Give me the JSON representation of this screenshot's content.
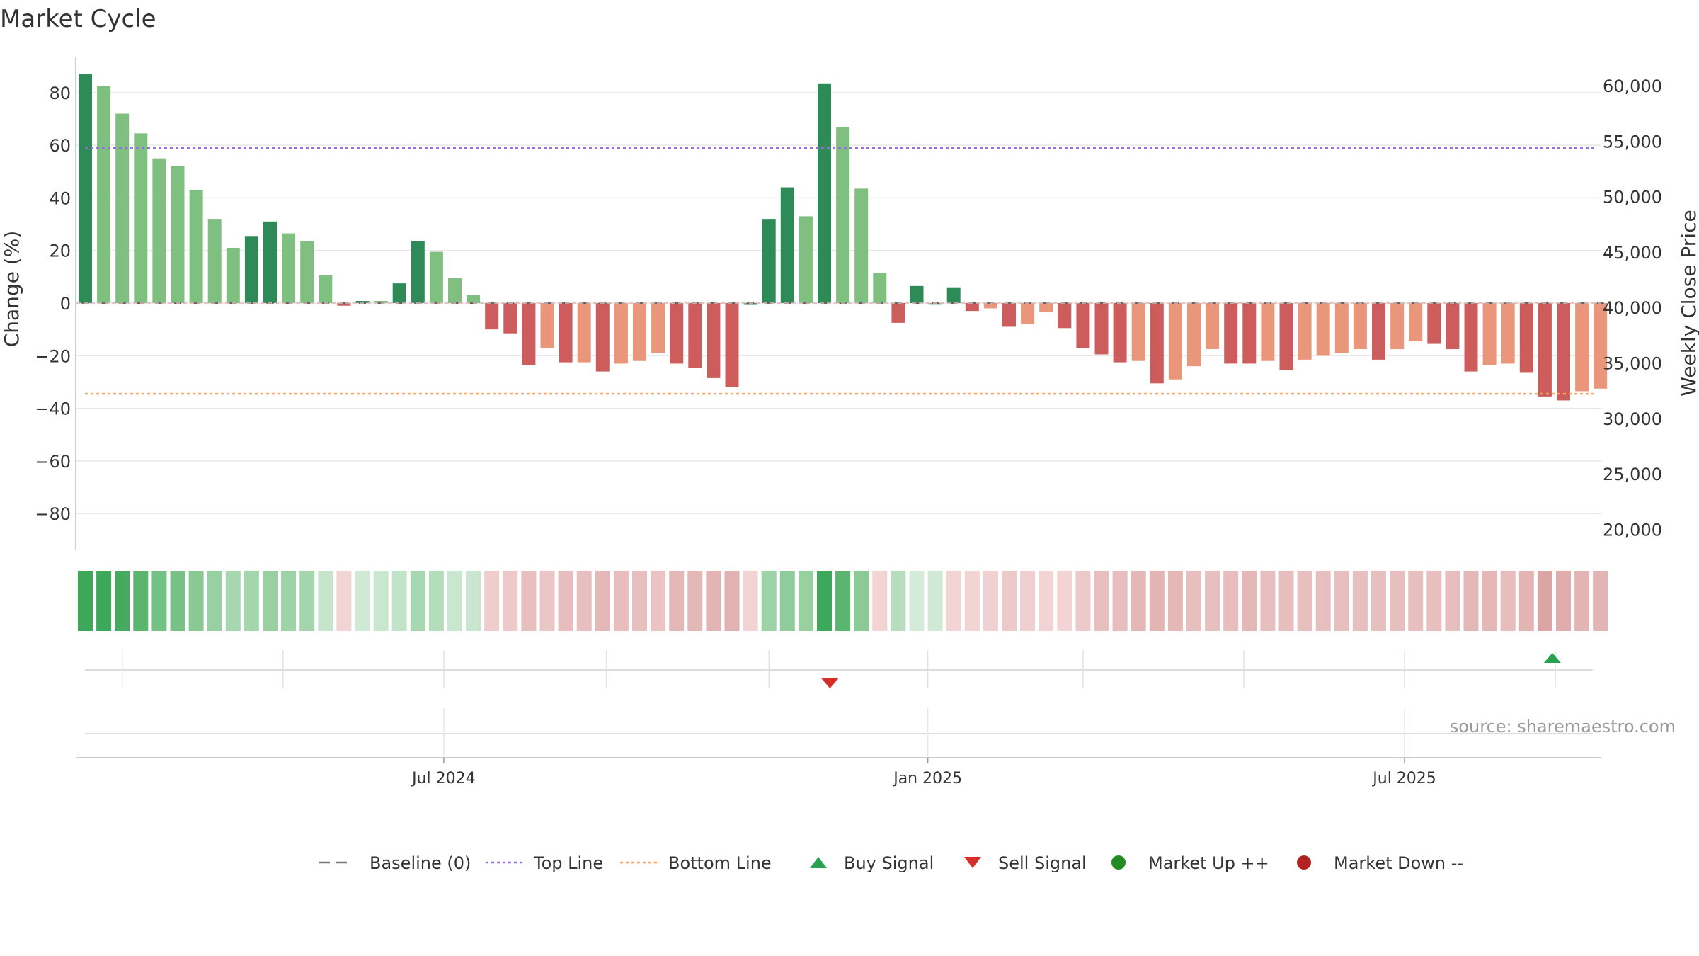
{
  "chart_data": {
    "type": "bar",
    "title": "Market Cycle",
    "ylabel": "Change (%)",
    "y2label": "Weekly Close Price",
    "ylim": [
      -95,
      95
    ],
    "y2lim": [
      18000,
      62000
    ],
    "yticks": [
      80,
      60,
      40,
      20,
      0,
      -20,
      -40,
      -60,
      -80
    ],
    "ytick_labels": [
      "80",
      "60",
      "40",
      "20",
      "0",
      "−20",
      "−40",
      "−60",
      "−80"
    ],
    "y2ticks": [
      60000,
      55000,
      50000,
      45000,
      40000,
      35000,
      30000,
      25000,
      20000
    ],
    "y2tick_labels": [
      "60,000",
      "55,000",
      "50,000",
      "45,000",
      "40,000",
      "35,000",
      "30,000",
      "25,000",
      "20,000"
    ],
    "x_ticks": [
      {
        "label": "Jul 2024",
        "index": 19.4
      },
      {
        "label": "Jan 2025",
        "index": 45.6
      },
      {
        "label": "Jul 2025",
        "index": 71.4
      }
    ],
    "minor_tick_indices": [
      2,
      10.7,
      28.2,
      37,
      54,
      62.7
    ],
    "grid": true,
    "legend_position": "bottom",
    "source": "source: sharemaestro.com",
    "values": [
      87,
      82.5,
      72,
      64.5,
      55,
      52,
      43,
      32,
      21,
      25.5,
      31,
      26.5,
      23.5,
      10.5,
      -1,
      0.8,
      0.8,
      7.5,
      23.5,
      19.5,
      9.5,
      3,
      -10,
      -11.5,
      -23.5,
      -17,
      -22.5,
      -22.5,
      -26,
      -23,
      -22,
      -19,
      -23,
      -24.5,
      -28.5,
      -32,
      0,
      32,
      44,
      33,
      83.5,
      67,
      43.5,
      11.5,
      -7.5,
      6.5,
      0,
      6,
      -3,
      -2,
      -9,
      -8,
      -3.5,
      -9.5,
      -17,
      -19.5,
      -22.5,
      -22,
      -30.5,
      -29,
      -24,
      -17.5,
      -23,
      -23,
      -22,
      -25.5,
      -21.5,
      -20,
      -19,
      -17.5,
      -21.5,
      -17.5,
      -14.5,
      -15.5,
      -17.5,
      -26,
      -23.5,
      -23,
      -26.5,
      -35.5,
      -37,
      -33.5,
      -32.5
    ],
    "bar_colors": [
      "#2e8b57",
      "#7fbf7f",
      "#7fbf7f",
      "#7fbf7f",
      "#7fbf7f",
      "#7fbf7f",
      "#7fbf7f",
      "#7fbf7f",
      "#7fbf7f",
      "#2e8b57",
      "#2e8b57",
      "#7fbf7f",
      "#7fbf7f",
      "#7fbf7f",
      "#cd5c5c",
      "#2e8b57",
      "#7fbf7f",
      "#2e8b57",
      "#2e8b57",
      "#7fbf7f",
      "#7fbf7f",
      "#7fbf7f",
      "#cd5c5c",
      "#cd5c5c",
      "#cd5c5c",
      "#e9967a",
      "#cd5c5c",
      "#e9967a",
      "#cd5c5c",
      "#e9967a",
      "#e9967a",
      "#e9967a",
      "#cd5c5c",
      "#cd5c5c",
      "#cd5c5c",
      "#cd5c5c",
      "#2e8b57",
      "#2e8b57",
      "#2e8b57",
      "#7fbf7f",
      "#2e8b57",
      "#7fbf7f",
      "#7fbf7f",
      "#7fbf7f",
      "#cd5c5c",
      "#2e8b57",
      "#7fbf7f",
      "#2e8b57",
      "#cd5c5c",
      "#e9967a",
      "#cd5c5c",
      "#e9967a",
      "#e9967a",
      "#cd5c5c",
      "#cd5c5c",
      "#cd5c5c",
      "#cd5c5c",
      "#e9967a",
      "#cd5c5c",
      "#e9967a",
      "#e9967a",
      "#e9967a",
      "#cd5c5c",
      "#cd5c5c",
      "#e9967a",
      "#cd5c5c",
      "#e9967a",
      "#e9967a",
      "#e9967a",
      "#e9967a",
      "#cd5c5c",
      "#e9967a",
      "#e9967a",
      "#cd5c5c",
      "#cd5c5c",
      "#cd5c5c",
      "#e9967a",
      "#e9967a",
      "#cd5c5c",
      "#cd5c5c",
      "#cd5c5c",
      "#e9967a",
      "#e9967a"
    ],
    "top_line": 59,
    "bottom_line": -34.5,
    "strength_colors": [
      "#3ea85a",
      "#3ea85a",
      "#45aa5f",
      "#5cb56f",
      "#74c184",
      "#78c287",
      "#88c994",
      "#98d0a2",
      "#a6d7b0",
      "#a3d6ad",
      "#98d0a2",
      "#9dd3a7",
      "#a3d6ad",
      "#c6e5cc",
      "#f2d4d4",
      "#cfe9d5",
      "#c9e6ce",
      "#c1e3c7",
      "#a8d8b1",
      "#b4ddbb",
      "#c9e6ce",
      "#c9e6ce",
      "#f0cdcd",
      "#eccaca",
      "#e8bfbf",
      "#ebc6c6",
      "#e7bdbd",
      "#e8bfbf",
      "#e5b8b8",
      "#e7bdbd",
      "#e8bfbf",
      "#eac4c4",
      "#e5b8b8",
      "#e5b8b8",
      "#e3b4b4",
      "#e2b1b1",
      "#f2d4d4",
      "#9dd3a7",
      "#90cc9b",
      "#98d0a2",
      "#3ea85a",
      "#5cb56f",
      "#8bca96",
      "#f2d4d4",
      "#b8ddbe",
      "#d4ebd9",
      "#cfe9d5",
      "#f2d4d4",
      "#f2d4d4",
      "#f0d0d0",
      "#eccaca",
      "#efcfcf",
      "#f2d4d4",
      "#f2d4d4",
      "#eccaca",
      "#e8bfbf",
      "#e7bdbd",
      "#e5b8b8",
      "#e3b4b4",
      "#e5b8b8",
      "#e8bfbf",
      "#e8bfbf",
      "#e7bdbd",
      "#e5b8b8",
      "#e8bfbf",
      "#e7bdbd",
      "#e8bfbf",
      "#e8bfbf",
      "#e8bfbf",
      "#e8bfbf",
      "#e8bfbf",
      "#e8bfbf",
      "#e8bfbf",
      "#e8bfbf",
      "#e7bdbd",
      "#e5b8b8",
      "#e5b8b8",
      "#e7bdbd",
      "#e3b4b4",
      "#dba5a5",
      "#e0acac",
      "#e3b4b4",
      "#e3b4b4"
    ],
    "signals": [
      {
        "type": "sell",
        "index": 40.3
      },
      {
        "type": "buy",
        "index": 79.4
      }
    ],
    "legend": [
      {
        "label": "Baseline (0)",
        "symbol": "dash",
        "color": "#777777"
      },
      {
        "label": "Top Line",
        "symbol": "dotted",
        "color": "#9370db"
      },
      {
        "label": "Bottom Line",
        "symbol": "dotted",
        "color": "#f4a460"
      },
      {
        "label": "Buy Signal",
        "symbol": "triangle-up",
        "color": "#27a24f"
      },
      {
        "label": "Sell Signal",
        "symbol": "triangle-down",
        "color": "#d62d2d"
      },
      {
        "label": "Market Up ++",
        "symbol": "circle",
        "color": "#228b22"
      },
      {
        "label": "Market Down --",
        "symbol": "circle",
        "color": "#b22222"
      }
    ]
  }
}
